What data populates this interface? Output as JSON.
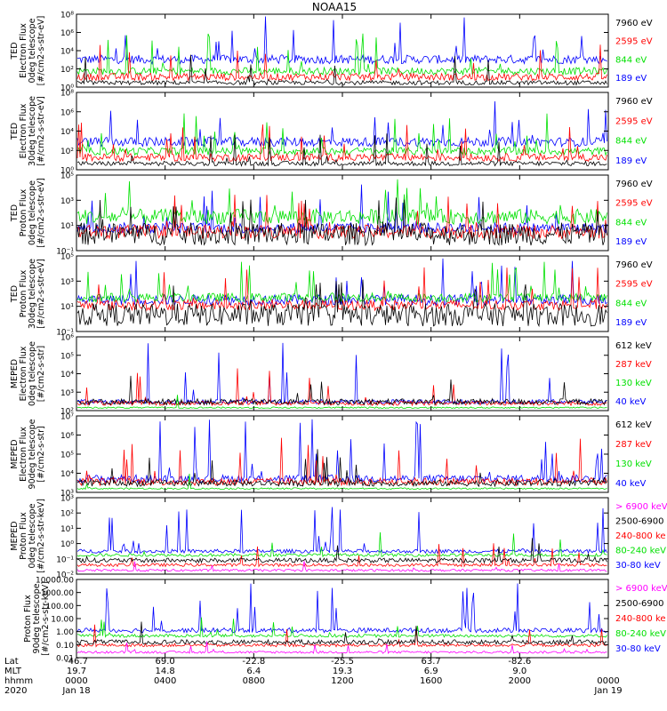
{
  "title": "NOAA15",
  "colors": {
    "black": "#000000",
    "red": "#ff0000",
    "green": "#00e000",
    "blue": "#0000ff",
    "magenta": "#ff00ff"
  },
  "chart_data": {
    "type": "line",
    "x_axis": {
      "rows": [
        {
          "label": "Lat",
          "values": [
            "-46.7",
            "69.0",
            "-22.8",
            "-25.5",
            "63.7",
            "-82.6",
            ""
          ]
        },
        {
          "label": "MLT",
          "values": [
            "19.7",
            "14.8",
            "6.4",
            "19.3",
            "6.9",
            "9.0",
            ""
          ]
        },
        {
          "label": "hhmm",
          "values": [
            "0000",
            "0400",
            "0800",
            "1200",
            "1600",
            "2000",
            "0000"
          ]
        },
        {
          "label": "2020",
          "values": [
            "Jan 18",
            "",
            "",
            "",
            "",
            "",
            "Jan 19"
          ]
        }
      ],
      "hours": [
        0,
        4,
        8,
        12,
        16,
        20,
        24
      ]
    },
    "panels": [
      {
        "ylabel": [
          "TED",
          "Electron Flux",
          "0deg telescope",
          "[#/cm2-s-str-eV]"
        ],
        "yscale": "log",
        "ytick_labels": [
          "10⁰",
          "10²",
          "10⁴",
          "10⁶",
          "10⁸"
        ],
        "legend": [
          {
            "label": "7960 eV",
            "color": "black"
          },
          {
            "label": "2595 eV",
            "color": "red"
          },
          {
            "label": "844 eV",
            "color": "green"
          },
          {
            "label": "189 eV",
            "color": "blue"
          }
        ]
      },
      {
        "ylabel": [
          "TED",
          "Electron Flux",
          "30deg telescope",
          "[#/cm2-s-str-eV]"
        ],
        "yscale": "log",
        "ytick_labels": [
          "10⁰",
          "10²",
          "10⁴",
          "10⁶",
          "10⁸"
        ],
        "legend": [
          {
            "label": "7960 eV",
            "color": "black"
          },
          {
            "label": "2595 eV",
            "color": "red"
          },
          {
            "label": "844 eV",
            "color": "green"
          },
          {
            "label": "189 eV",
            "color": "blue"
          }
        ]
      },
      {
        "ylabel": [
          "TED",
          "Proton Flux",
          "0deg telescope",
          "[#/cm2-s-str-eV]"
        ],
        "yscale": "log",
        "ytick_labels": [
          "10⁻¹",
          "10¹",
          "10³",
          "10⁵"
        ],
        "legend": [
          {
            "label": "7960 eV",
            "color": "black"
          },
          {
            "label": "2595 eV",
            "color": "red"
          },
          {
            "label": "844 eV",
            "color": "green"
          },
          {
            "label": "189 eV",
            "color": "blue"
          }
        ]
      },
      {
        "ylabel": [
          "TED",
          "Proton Flux",
          "30deg telescope",
          "[#/cm2-s-str-eV]"
        ],
        "yscale": "log",
        "ytick_labels": [
          "10⁻¹",
          "10¹",
          "10³",
          "10⁵"
        ],
        "legend": [
          {
            "label": "7960 eV",
            "color": "black"
          },
          {
            "label": "2595 eV",
            "color": "red"
          },
          {
            "label": "844 eV",
            "color": "green"
          },
          {
            "label": "189 eV",
            "color": "blue"
          }
        ]
      },
      {
        "ylabel": [
          "MEPED",
          "Electron Flux",
          "0deg telescope",
          "[#/cm2-s-str]"
        ],
        "yscale": "log",
        "ytick_labels": [
          "10²",
          "10³",
          "10⁴",
          "10⁵",
          "10⁶"
        ],
        "legend": [
          {
            "label": "612 keV",
            "color": "black"
          },
          {
            "label": "287 keV",
            "color": "red"
          },
          {
            "label": "130 keV",
            "color": "green"
          },
          {
            "label": "40 keV",
            "color": "blue"
          }
        ]
      },
      {
        "ylabel": [
          "MEPED",
          "Electron Flux",
          "90deg telescope",
          "[#/cm2-s-str]"
        ],
        "yscale": "log",
        "ytick_labels": [
          "10³",
          "10⁴",
          "10⁵",
          "10⁶",
          "10⁷"
        ],
        "legend": [
          {
            "label": "612 keV",
            "color": "black"
          },
          {
            "label": "287 keV",
            "color": "red"
          },
          {
            "label": "130 keV",
            "color": "green"
          },
          {
            "label": "40 keV",
            "color": "blue"
          }
        ]
      },
      {
        "ylabel": [
          "MEPED",
          "Proton Flux",
          "0deg telescope",
          "[#/cm2-s-str-keV]"
        ],
        "yscale": "log",
        "ytick_labels": [
          "10⁻²",
          "10⁻¹",
          "10⁰",
          "10¹",
          "10²",
          "10³"
        ],
        "legend": [
          {
            "label": "> 6900 keV",
            "color": "magenta"
          },
          {
            "label": "2500-6900",
            "color": "black"
          },
          {
            "label": "240-800 ke",
            "color": "red"
          },
          {
            "label": "80-240 keV",
            "color": "green"
          },
          {
            "label": "30-80 keV",
            "color": "blue"
          }
        ]
      },
      {
        "ylabel": [
          "Proton Flux",
          "90deg telescope",
          "[#/cm2-s-str-keV]"
        ],
        "yscale": "log",
        "ytick_labels": [
          "0.01",
          "0.10",
          "1.00",
          "10.00",
          "100.00",
          "1000.00",
          "10000.00"
        ],
        "legend": [
          {
            "label": "> 6900 keV",
            "color": "magenta"
          },
          {
            "label": "2500-6900",
            "color": "black"
          },
          {
            "label": "240-800 ke",
            "color": "red"
          },
          {
            "label": "80-240 keV",
            "color": "green"
          },
          {
            "label": "30-80 keV",
            "color": "blue"
          }
        ]
      }
    ]
  }
}
